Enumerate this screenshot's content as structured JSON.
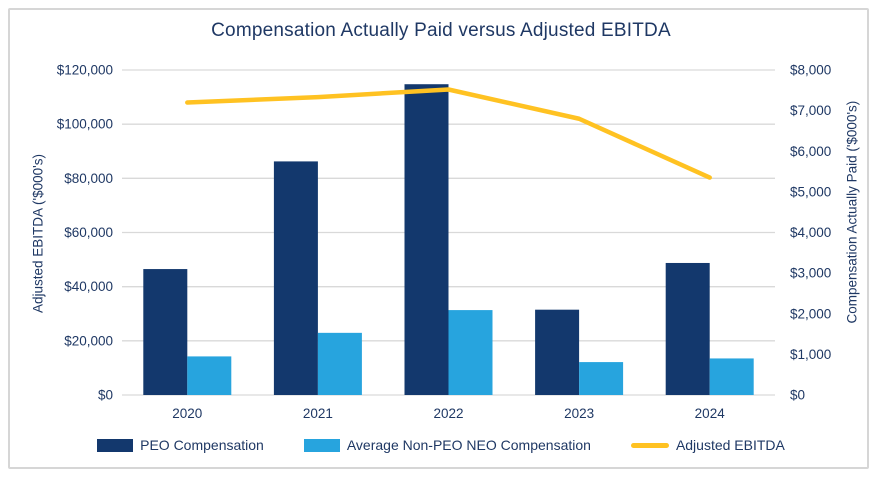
{
  "chart_data": {
    "type": "combo-bar-line",
    "title": "Compensation Actually Paid versus Adjusted EBITDA",
    "categories": [
      "2020",
      "2021",
      "2022",
      "2023",
      "2024"
    ],
    "series": [
      {
        "name": "PEO Compensation",
        "type": "bar",
        "axis": "right",
        "color": "#13386D",
        "values": [
          3100,
          5750,
          7650,
          2100,
          3250
        ]
      },
      {
        "name": "Average Non-PEO NEO Compensation",
        "type": "bar",
        "axis": "right",
        "color": "#27A4DE",
        "values": [
          950,
          1530,
          2090,
          810,
          900
        ]
      },
      {
        "name": "Adjusted EBITDA",
        "type": "line",
        "axis": "left",
        "color": "#FFC222",
        "values": [
          108000,
          110000,
          112800,
          102000,
          80300
        ]
      }
    ],
    "left_axis": {
      "title": "Adjusted EBITDA ('$000's)",
      "min": 0,
      "max": 120000,
      "step": 20000,
      "ticks": [
        "$0",
        "$20,000",
        "$40,000",
        "$60,000",
        "$80,000",
        "$100,000",
        "$120,000"
      ]
    },
    "right_axis": {
      "title": "Compensation Actually Paid ('$000's)",
      "min": 0,
      "max": 8000,
      "step": 1000,
      "ticks": [
        "$0",
        "$1,000",
        "$2,000",
        "$3,000",
        "$4,000",
        "$5,000",
        "$6,000",
        "$7,000",
        "$8,000"
      ]
    },
    "legend_position": "bottom",
    "grid": true,
    "colors": {
      "text": "#1F3864",
      "gridline": "#D9D9D9",
      "background": "#FFFFFF",
      "border": "#D6D6D6"
    }
  }
}
